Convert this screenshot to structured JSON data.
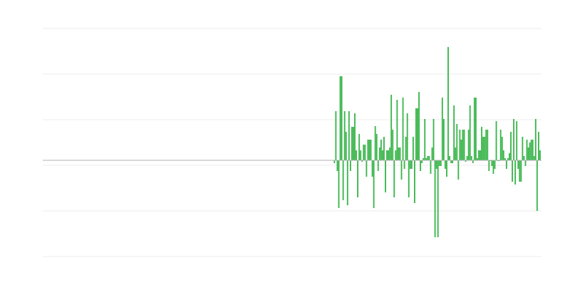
{
  "chart_data": {
    "type": "bar",
    "title": "",
    "xlabel": "",
    "ylabel": "",
    "bar_color": "#39b54a",
    "baseline_color": "#b0b0b0",
    "grid_color": "#ececec",
    "grid": true,
    "ylim": [
      -135,
      185
    ],
    "xlim": [
      -200,
      142
    ],
    "gridlines": [
      185,
      121,
      57,
      -7,
      -71,
      -135
    ],
    "values": [
      -4,
      69,
      -15,
      -67,
      118,
      118,
      -56,
      69,
      40,
      -63,
      69,
      -15,
      47,
      47,
      66,
      14,
      -52,
      37,
      14,
      -2,
      22,
      22,
      -23,
      29,
      29,
      29,
      -23,
      -67,
      48,
      37,
      -15,
      18,
      29,
      14,
      33,
      -45,
      14,
      14,
      18,
      92,
      43,
      -52,
      14,
      85,
      18,
      18,
      -27,
      88,
      -12,
      33,
      66,
      -52,
      -12,
      -12,
      33,
      -60,
      73,
      73,
      96,
      -15,
      -4,
      3,
      58,
      3,
      6,
      6,
      -19,
      18,
      58,
      -108,
      -12,
      -108,
      -8,
      -8,
      88,
      58,
      -12,
      -23,
      159,
      6,
      -4,
      -4,
      77,
      18,
      51,
      -27,
      43,
      29,
      43,
      43,
      -2,
      6,
      43,
      77,
      6,
      -4,
      88,
      88,
      3,
      14,
      14,
      47,
      33,
      33,
      43,
      43,
      -15,
      -1,
      -8,
      -19,
      -12,
      55,
      -1,
      -1,
      43,
      33,
      14,
      3,
      -12,
      3,
      10,
      40,
      -30,
      58,
      -34,
      55,
      -12,
      -30,
      -30,
      33,
      6,
      -8,
      29,
      18,
      25,
      29,
      29,
      6,
      58,
      -71,
      40,
      14
    ]
  }
}
